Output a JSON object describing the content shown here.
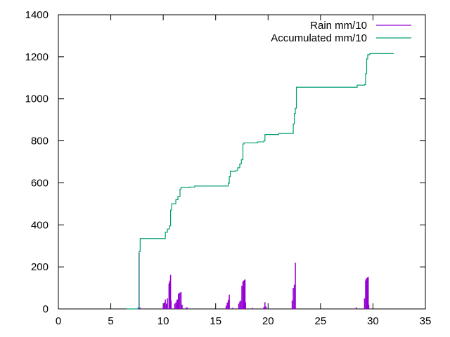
{
  "chart_data": {
    "type": "line",
    "title": "",
    "xlabel": "",
    "ylabel": "",
    "xlim": [
      0,
      35
    ],
    "ylim": [
      0,
      1400
    ],
    "xticks": [
      "0",
      "5",
      "10",
      "15",
      "20",
      "25",
      "30",
      "35"
    ],
    "yticks": [
      "0",
      "200",
      "400",
      "600",
      "800",
      "1000",
      "1200",
      "1400"
    ],
    "grid": false,
    "legend": "top-right",
    "series": [
      {
        "name": "Rain mm/10",
        "style": "impulses",
        "color": "#9400d3",
        "points": [
          [
            7.6,
            5
          ],
          [
            7.7,
            268
          ],
          [
            7.8,
            6
          ],
          [
            10.0,
            15
          ],
          [
            10.1,
            30
          ],
          [
            10.2,
            45
          ],
          [
            10.3,
            25
          ],
          [
            10.4,
            50
          ],
          [
            10.55,
            120
          ],
          [
            10.6,
            128
          ],
          [
            10.65,
            135
          ],
          [
            10.7,
            162
          ],
          [
            10.75,
            40
          ],
          [
            11.1,
            25
          ],
          [
            11.2,
            30
          ],
          [
            11.3,
            40
          ],
          [
            11.35,
            45
          ],
          [
            11.45,
            70
          ],
          [
            11.5,
            75
          ],
          [
            11.6,
            78
          ],
          [
            11.7,
            80
          ],
          [
            11.8,
            20
          ],
          [
            12.2,
            8
          ],
          [
            12.3,
            6
          ],
          [
            16.0,
            15
          ],
          [
            16.1,
            30
          ],
          [
            16.2,
            40
          ],
          [
            16.25,
            45
          ],
          [
            16.3,
            68
          ],
          [
            16.6,
            5
          ],
          [
            17.2,
            25
          ],
          [
            17.3,
            35
          ],
          [
            17.4,
            40
          ],
          [
            17.5,
            110
          ],
          [
            17.6,
            130
          ],
          [
            17.65,
            132
          ],
          [
            17.7,
            135
          ],
          [
            17.75,
            138
          ],
          [
            17.8,
            140
          ],
          [
            17.85,
            30
          ],
          [
            18.5,
            5
          ],
          [
            19.6,
            10
          ],
          [
            19.7,
            32
          ],
          [
            19.8,
            12
          ],
          [
            22.3,
            40
          ],
          [
            22.4,
            100
          ],
          [
            22.5,
            115
          ],
          [
            22.6,
            220
          ],
          [
            28.4,
            8
          ],
          [
            29.2,
            50
          ],
          [
            29.3,
            135
          ],
          [
            29.35,
            142
          ],
          [
            29.4,
            145
          ],
          [
            29.45,
            148
          ],
          [
            29.5,
            150
          ],
          [
            29.55,
            152
          ],
          [
            29.6,
            20
          ]
        ]
      },
      {
        "name": "Accumulated mm/10",
        "style": "steps",
        "color": "#009e73",
        "points": [
          [
            6.5,
            0
          ],
          [
            7.6,
            5
          ],
          [
            7.7,
            273
          ],
          [
            7.8,
            335
          ],
          [
            10.0,
            335
          ],
          [
            10.2,
            365
          ],
          [
            10.4,
            380
          ],
          [
            10.6,
            395
          ],
          [
            10.7,
            470
          ],
          [
            10.8,
            500
          ],
          [
            11.0,
            500
          ],
          [
            11.2,
            520
          ],
          [
            11.4,
            535
          ],
          [
            11.6,
            570
          ],
          [
            11.7,
            578
          ],
          [
            12.5,
            580
          ],
          [
            13.0,
            585
          ],
          [
            16.0,
            585
          ],
          [
            16.2,
            598
          ],
          [
            16.3,
            630
          ],
          [
            16.4,
            655
          ],
          [
            16.9,
            658
          ],
          [
            17.1,
            672
          ],
          [
            17.3,
            690
          ],
          [
            17.45,
            710
          ],
          [
            17.6,
            785
          ],
          [
            17.7,
            790
          ],
          [
            19.0,
            795
          ],
          [
            19.6,
            800
          ],
          [
            19.7,
            830
          ],
          [
            20.5,
            830
          ],
          [
            21.0,
            835
          ],
          [
            22.3,
            835
          ],
          [
            22.4,
            880
          ],
          [
            22.5,
            930
          ],
          [
            22.6,
            955
          ],
          [
            22.7,
            1055
          ],
          [
            28.4,
            1055
          ],
          [
            28.5,
            1065
          ],
          [
            29.2,
            1068
          ],
          [
            29.3,
            1120
          ],
          [
            29.4,
            1190
          ],
          [
            29.5,
            1210
          ],
          [
            29.7,
            1215
          ],
          [
            32.0,
            1215
          ]
        ]
      }
    ]
  }
}
